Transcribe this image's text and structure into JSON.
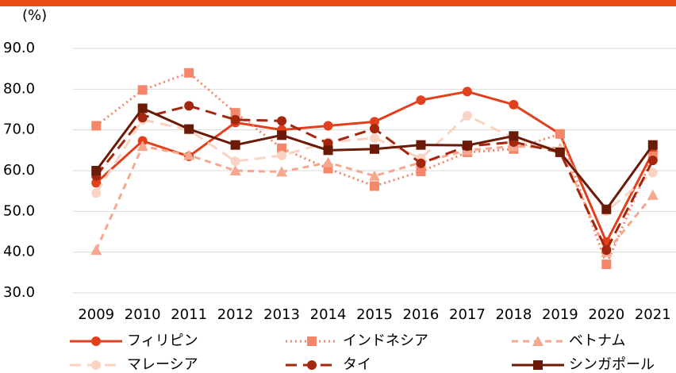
{
  "chart_data": {
    "type": "line",
    "y_label": "(%)",
    "categories": [
      "2009",
      "2010",
      "2011",
      "2012",
      "2013",
      "2014",
      "2015",
      "2016",
      "2017",
      "2018",
      "2019",
      "2020",
      "2021"
    ],
    "ylim": [
      30,
      90
    ],
    "yticks": [
      {
        "value": 30,
        "label": "30.0"
      },
      {
        "value": 40,
        "label": "40.0"
      },
      {
        "value": 50,
        "label": "50.0"
      },
      {
        "value": 60,
        "label": "60.0"
      },
      {
        "value": 70,
        "label": "70.0"
      },
      {
        "value": 80,
        "label": "80.0"
      },
      {
        "value": 90,
        "label": "90.0"
      }
    ],
    "grid": true,
    "series": [
      {
        "name": "フィリピン",
        "color": "#e2401c",
        "dash": "solid",
        "marker": "circle",
        "values": [
          57.0,
          67.3,
          63.5,
          71.8,
          70.0,
          71.0,
          72.0,
          77.3,
          79.4,
          76.2,
          69.0,
          42.5,
          64.5
        ]
      },
      {
        "name": "インドネシア",
        "color": "#f4876a",
        "dash": "dotted",
        "marker": "square",
        "values": [
          71.0,
          79.8,
          84.0,
          74.2,
          65.5,
          60.5,
          56.2,
          59.8,
          64.5,
          65.3,
          69.0,
          37.0,
          63.5
        ]
      },
      {
        "name": "ベトナム",
        "color": "#f6a88e",
        "dash": "dashed",
        "marker": "triangle",
        "values": [
          40.5,
          66.0,
          63.8,
          60.0,
          59.7,
          62.0,
          58.7,
          62.0,
          65.0,
          66.0,
          65.5,
          40.0,
          54.0
        ]
      },
      {
        "name": "マレーシア",
        "color": "#fbd3c3",
        "dash": "longdash",
        "marker": "circle",
        "values": [
          54.5,
          72.5,
          70.0,
          62.3,
          63.7,
          67.0,
          68.0,
          63.0,
          73.5,
          68.0,
          65.0,
          50.0,
          59.5
        ]
      },
      {
        "name": "タイ",
        "color": "#a3270f",
        "dash": "longdash",
        "marker": "circle",
        "values": [
          58.7,
          73.0,
          75.9,
          72.5,
          72.2,
          66.7,
          70.3,
          61.8,
          66.0,
          67.0,
          64.5,
          40.5,
          62.5
        ]
      },
      {
        "name": "シンガポール",
        "color": "#6b1a08",
        "dash": "solid",
        "marker": "square",
        "values": [
          60.0,
          75.3,
          70.2,
          66.3,
          68.7,
          65.0,
          65.3,
          66.3,
          66.2,
          68.5,
          64.5,
          50.5,
          66.3
        ]
      }
    ]
  }
}
